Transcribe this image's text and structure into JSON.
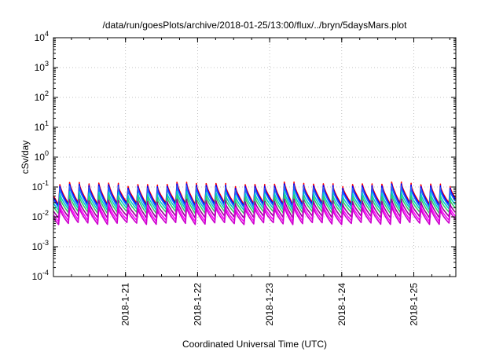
{
  "chart_data": {
    "type": "line",
    "title": "/data/run/goesPlots/archive/2018-01-25/13:00/flux/../bryn/5daysMars.plot",
    "xlabel": "Coordinated Universal Time (UTC)",
    "ylabel": "cSv/day",
    "yscale": "log",
    "ylim": [
      0.0001,
      10000
    ],
    "xlim": [
      "2018-01-20 00:00",
      "2018-01-25 14:00"
    ],
    "y_ticks": [
      {
        "base": "10",
        "exp": "-4",
        "value": 0.0001
      },
      {
        "base": "10",
        "exp": "-3",
        "value": 0.001
      },
      {
        "base": "10",
        "exp": "-2",
        "value": 0.01
      },
      {
        "base": "10",
        "exp": "-1",
        "value": 0.1
      },
      {
        "base": "10",
        "exp": "0",
        "value": 1
      },
      {
        "base": "10",
        "exp": "1",
        "value": 10
      },
      {
        "base": "10",
        "exp": "2",
        "value": 100
      },
      {
        "base": "10",
        "exp": "3",
        "value": 1000
      },
      {
        "base": "10",
        "exp": "4",
        "value": 10000
      }
    ],
    "x_ticks": [
      {
        "label": "2018-1-21",
        "date": "2018-01-21 00:00"
      },
      {
        "label": "2018-1-22",
        "date": "2018-01-22 00:00"
      },
      {
        "label": "2018-1-23",
        "date": "2018-01-23 00:00"
      },
      {
        "label": "2018-1-24",
        "date": "2018-01-24 00:00"
      },
      {
        "label": "2018-1-25",
        "date": "2018-01-25 00:00"
      }
    ],
    "grid": true,
    "sawtooth_period_hours": 3.25,
    "series": [
      {
        "color": "#ff0000",
        "peak": 0.12,
        "trough": 0.028
      },
      {
        "color": "#0000ff",
        "peak": 0.105,
        "trough": 0.025
      },
      {
        "color": "#2266ff",
        "peak": 0.09,
        "trough": 0.022
      },
      {
        "color": "#00cccc",
        "peak": 0.06,
        "trough": 0.018
      },
      {
        "color": "#33cc66",
        "peak": 0.045,
        "trough": 0.014
      },
      {
        "color": "#990099",
        "peak": 0.032,
        "trough": 0.01
      },
      {
        "color": "#ff00ff",
        "peak": 0.024,
        "trough": 0.0075
      },
      {
        "color": "#cc00cc",
        "peak": 0.019,
        "trough": 0.006
      }
    ]
  }
}
